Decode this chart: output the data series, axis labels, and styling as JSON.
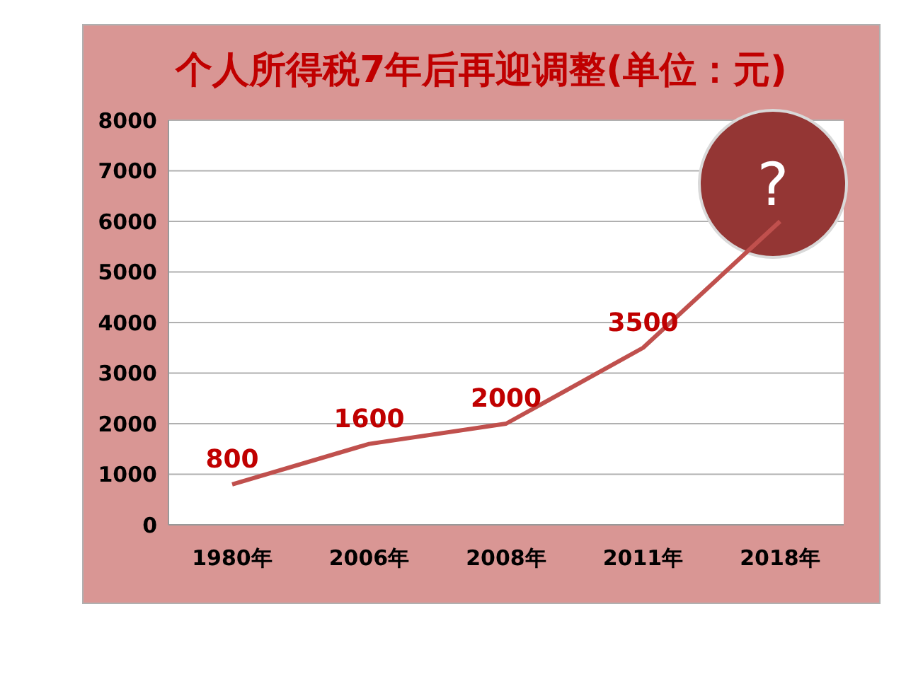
{
  "chart_data": {
    "type": "line",
    "title": "个人所得税7年后再迎调整(单位：元)",
    "categories": [
      "1980年",
      "2006年",
      "2008年",
      "2011年",
      "2018年"
    ],
    "series": [
      {
        "color": "#c0504d",
        "values": [
          800,
          1600,
          2000,
          3500,
          6000
        ],
        "value_labels": [
          "800",
          "1600",
          "2000",
          "3500",
          null
        ]
      }
    ],
    "ylim": [
      0,
      8000
    ],
    "yticks": [
      0,
      1000,
      2000,
      3000,
      4000,
      5000,
      6000,
      7000,
      8000
    ],
    "grid": "y",
    "legend": false,
    "marker": "none",
    "line_style": "solid",
    "annotations": [
      "?"
    ]
  }
}
